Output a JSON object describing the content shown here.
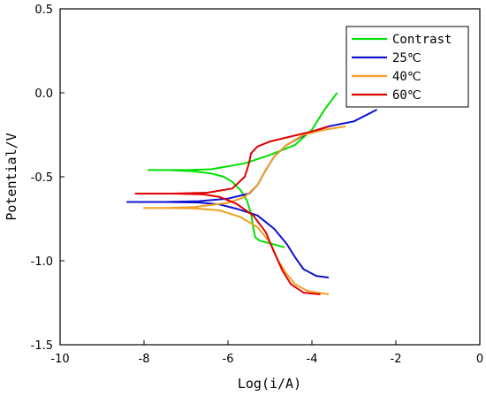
{
  "chart_data": {
    "type": "line",
    "title": "",
    "xlabel": "Log(i/A)",
    "ylabel": "Potential/V",
    "xlim": [
      -10,
      0
    ],
    "ylim": [
      -1.5,
      0.5
    ],
    "x_ticks": [
      "-10",
      "-8",
      "-6",
      "-4",
      "-2",
      "0"
    ],
    "y_ticks": [
      "0.5",
      "0.0",
      "-0.5",
      "-1.0",
      "-1.5"
    ],
    "grid": false,
    "legend_position": "top-right",
    "series": [
      {
        "name": "Contrast",
        "color": "#00e000",
        "points": [
          [
            -3.4,
            0.0
          ],
          [
            -3.7,
            -0.1
          ],
          [
            -4.0,
            -0.22
          ],
          [
            -4.4,
            -0.31
          ],
          [
            -5.0,
            -0.37
          ],
          [
            -5.6,
            -0.42
          ],
          [
            -6.4,
            -0.455
          ],
          [
            -7.0,
            -0.46
          ],
          [
            -7.4,
            -0.46
          ],
          [
            -7.9,
            -0.46
          ],
          [
            -7.4,
            -0.46
          ],
          [
            -6.8,
            -0.468
          ],
          [
            -6.4,
            -0.48
          ],
          [
            -6.1,
            -0.5
          ],
          [
            -5.9,
            -0.53
          ],
          [
            -5.7,
            -0.58
          ],
          [
            -5.55,
            -0.64
          ],
          [
            -5.45,
            -0.72
          ],
          [
            -5.4,
            -0.8
          ],
          [
            -5.35,
            -0.86
          ],
          [
            -5.25,
            -0.88
          ],
          [
            -4.95,
            -0.9
          ],
          [
            -4.65,
            -0.92
          ]
        ]
      },
      {
        "name": "25℃",
        "color": "#1010d0",
        "points": [
          [
            -2.45,
            -0.1
          ],
          [
            -3.0,
            -0.17
          ],
          [
            -3.6,
            -0.2
          ],
          [
            -4.1,
            -0.24
          ],
          [
            -4.6,
            -0.31
          ],
          [
            -4.9,
            -0.38
          ],
          [
            -5.1,
            -0.46
          ],
          [
            -5.3,
            -0.55
          ],
          [
            -5.5,
            -0.6
          ],
          [
            -6.0,
            -0.63
          ],
          [
            -6.7,
            -0.645
          ],
          [
            -7.5,
            -0.65
          ],
          [
            -8.4,
            -0.65
          ],
          [
            -7.5,
            -0.65
          ],
          [
            -6.7,
            -0.653
          ],
          [
            -6.2,
            -0.665
          ],
          [
            -5.8,
            -0.69
          ],
          [
            -5.3,
            -0.73
          ],
          [
            -4.9,
            -0.81
          ],
          [
            -4.6,
            -0.9
          ],
          [
            -4.4,
            -0.98
          ],
          [
            -4.2,
            -1.05
          ],
          [
            -3.9,
            -1.09
          ],
          [
            -3.6,
            -1.1
          ]
        ]
      },
      {
        "name": "40℃",
        "color": "#f0a020",
        "points": [
          [
            -3.2,
            -0.2
          ],
          [
            -3.7,
            -0.22
          ],
          [
            -4.2,
            -0.25
          ],
          [
            -4.6,
            -0.31
          ],
          [
            -4.9,
            -0.38
          ],
          [
            -5.1,
            -0.46
          ],
          [
            -5.3,
            -0.55
          ],
          [
            -5.6,
            -0.62
          ],
          [
            -6.0,
            -0.655
          ],
          [
            -6.8,
            -0.68
          ],
          [
            -7.5,
            -0.685
          ],
          [
            -8.0,
            -0.685
          ],
          [
            -7.5,
            -0.685
          ],
          [
            -6.8,
            -0.688
          ],
          [
            -6.2,
            -0.7
          ],
          [
            -5.7,
            -0.74
          ],
          [
            -5.3,
            -0.8
          ],
          [
            -5.0,
            -0.89
          ],
          [
            -4.8,
            -1.0
          ],
          [
            -4.6,
            -1.08
          ],
          [
            -4.4,
            -1.14
          ],
          [
            -4.1,
            -1.18
          ],
          [
            -3.6,
            -1.2
          ]
        ]
      },
      {
        "name": "60℃",
        "color": "#e00000",
        "points": [
          [
            -3.6,
            -0.2
          ],
          [
            -4.0,
            -0.23
          ],
          [
            -4.5,
            -0.26
          ],
          [
            -5.0,
            -0.29
          ],
          [
            -5.3,
            -0.32
          ],
          [
            -5.45,
            -0.36
          ],
          [
            -5.5,
            -0.42
          ],
          [
            -5.6,
            -0.5
          ],
          [
            -5.9,
            -0.57
          ],
          [
            -6.5,
            -0.595
          ],
          [
            -7.3,
            -0.6
          ],
          [
            -8.2,
            -0.6
          ],
          [
            -7.3,
            -0.6
          ],
          [
            -6.6,
            -0.605
          ],
          [
            -6.2,
            -0.62
          ],
          [
            -5.8,
            -0.66
          ],
          [
            -5.4,
            -0.73
          ],
          [
            -5.1,
            -0.83
          ],
          [
            -4.9,
            -0.95
          ],
          [
            -4.7,
            -1.06
          ],
          [
            -4.5,
            -1.14
          ],
          [
            -4.2,
            -1.19
          ],
          [
            -3.8,
            -1.2
          ]
        ]
      }
    ]
  }
}
